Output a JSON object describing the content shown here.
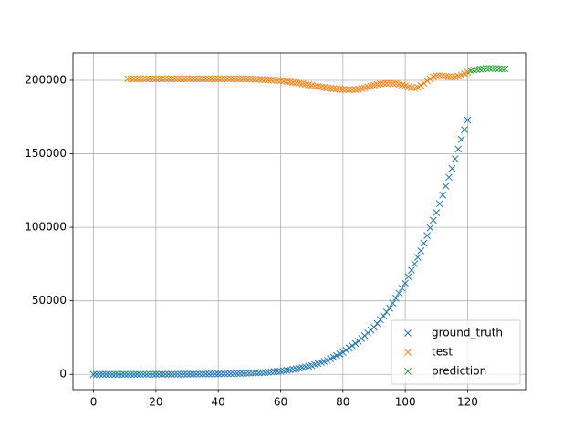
{
  "chart_data": {
    "type": "scatter",
    "grid": true,
    "legend": "lower right",
    "xlim": [
      -6.6,
      138.6
    ],
    "ylim": [
      -10400,
      218600
    ],
    "xticks": [
      0,
      20,
      40,
      60,
      80,
      100,
      120
    ],
    "yticks": [
      0,
      50000,
      100000,
      150000,
      200000
    ],
    "series": [
      {
        "name": "ground_truth",
        "color": "#1f77b4",
        "x": [
          0,
          1,
          2,
          3,
          4,
          5,
          6,
          7,
          8,
          9,
          10,
          11,
          12,
          13,
          14,
          15,
          16,
          17,
          18,
          19,
          20,
          21,
          22,
          23,
          24,
          25,
          26,
          27,
          28,
          29,
          30,
          31,
          32,
          33,
          34,
          35,
          36,
          37,
          38,
          39,
          40,
          41,
          42,
          43,
          44,
          45,
          46,
          47,
          48,
          49,
          50,
          51,
          52,
          53,
          54,
          55,
          56,
          57,
          58,
          59,
          60,
          61,
          62,
          63,
          64,
          65,
          66,
          67,
          68,
          69,
          70,
          71,
          72,
          73,
          74,
          75,
          76,
          77,
          78,
          79,
          80,
          81,
          82,
          83,
          84,
          85,
          86,
          87,
          88,
          89,
          90,
          91,
          92,
          93,
          94,
          95,
          96,
          97,
          98,
          99,
          100,
          101,
          102,
          103,
          104,
          105,
          106,
          107,
          108,
          109,
          110,
          111,
          112,
          113,
          114,
          115,
          116,
          117,
          118,
          119,
          120
        ],
        "values": [
          0,
          0,
          0,
          0,
          0,
          0,
          0,
          0,
          0,
          0,
          10,
          10,
          10,
          20,
          20,
          20,
          30,
          30,
          40,
          40,
          50,
          50,
          60,
          70,
          80,
          90,
          100,
          110,
          120,
          130,
          140,
          150,
          160,
          170,
          180,
          200,
          220,
          240,
          260,
          280,
          300,
          340,
          380,
          420,
          460,
          500,
          560,
          620,
          680,
          740,
          800,
          900,
          1000,
          1100,
          1200,
          1300,
          1480,
          1660,
          1840,
          2020,
          2200,
          2500,
          2800,
          3100,
          3400,
          3700,
          4160,
          4620,
          5080,
          5540,
          6000,
          6700,
          7400,
          8100,
          8800,
          9500,
          10600,
          11700,
          12800,
          13900,
          15000,
          16500,
          18000,
          19500,
          21000,
          22500,
          24400,
          26300,
          28200,
          30100,
          32000,
          34600,
          37200,
          39800,
          42400,
          45000,
          48400,
          51800,
          55200,
          58600,
          62000,
          66400,
          70800,
          75200,
          79600,
          84000,
          89200,
          94400,
          99600,
          104800,
          110000,
          116000,
          122000,
          128000,
          134000,
          140000,
          146600,
          153200,
          159800,
          166400,
          173000
        ]
      },
      {
        "name": "test",
        "color": "#ff7f0e",
        "x": [
          11,
          12,
          13,
          14,
          15,
          16,
          17,
          18,
          19,
          20,
          21,
          22,
          23,
          24,
          25,
          26,
          27,
          28,
          29,
          30,
          31,
          32,
          33,
          34,
          35,
          36,
          37,
          38,
          39,
          40,
          41,
          42,
          43,
          44,
          45,
          46,
          47,
          48,
          49,
          50,
          51,
          52,
          53,
          54,
          55,
          56,
          57,
          58,
          59,
          60,
          61,
          62,
          63,
          64,
          65,
          66,
          67,
          68,
          69,
          70,
          71,
          72,
          73,
          74,
          75,
          76,
          77,
          78,
          79,
          80,
          81,
          82,
          83,
          84,
          85,
          86,
          87,
          88,
          89,
          90,
          91,
          92,
          93,
          94,
          95,
          96,
          97,
          98,
          99,
          100,
          101,
          102,
          103,
          104,
          105,
          106,
          107,
          108,
          109,
          110,
          111,
          112,
          113,
          114,
          115,
          116,
          117,
          118,
          119,
          120
        ],
        "values": [
          201000,
          201000,
          201000,
          201000,
          201000,
          201000,
          201000,
          201000,
          201000,
          201000,
          201000,
          201000,
          201000,
          201000,
          201000,
          201000,
          201000,
          201000,
          201000,
          201000,
          201000,
          201000,
          201000,
          201000,
          201000,
          201000,
          201000,
          201000,
          201000,
          201000,
          201000,
          201000,
          201000,
          201000,
          201000,
          201000,
          201000,
          201000,
          201000,
          201000,
          200800,
          200700,
          200600,
          200500,
          200400,
          200300,
          200200,
          200100,
          200000,
          199800,
          199500,
          199200,
          198900,
          198600,
          198300,
          198000,
          197600,
          197200,
          196800,
          196400,
          196000,
          195700,
          195400,
          195100,
          194800,
          194500,
          194300,
          194100,
          194000,
          193800,
          193700,
          193600,
          193600,
          193700,
          194000,
          194400,
          194900,
          195500,
          196100,
          196700,
          197200,
          197600,
          197800,
          197900,
          198000,
          197900,
          197700,
          197300,
          196800,
          196200,
          195500,
          194900,
          194600,
          195200,
          196500,
          198000,
          199600,
          201000,
          202300,
          203000,
          203200,
          203000,
          202700,
          202400,
          202200,
          202300,
          202800,
          203600,
          204500,
          205500
        ]
      },
      {
        "name": "prediction",
        "color": "#2ca02c",
        "x": [
          121,
          122,
          123,
          124,
          125,
          126,
          127,
          128,
          129,
          130,
          131,
          132
        ],
        "values": [
          206500,
          207000,
          207300,
          207600,
          207800,
          208000,
          208100,
          208100,
          208000,
          207900,
          207800,
          207700
        ]
      }
    ]
  }
}
